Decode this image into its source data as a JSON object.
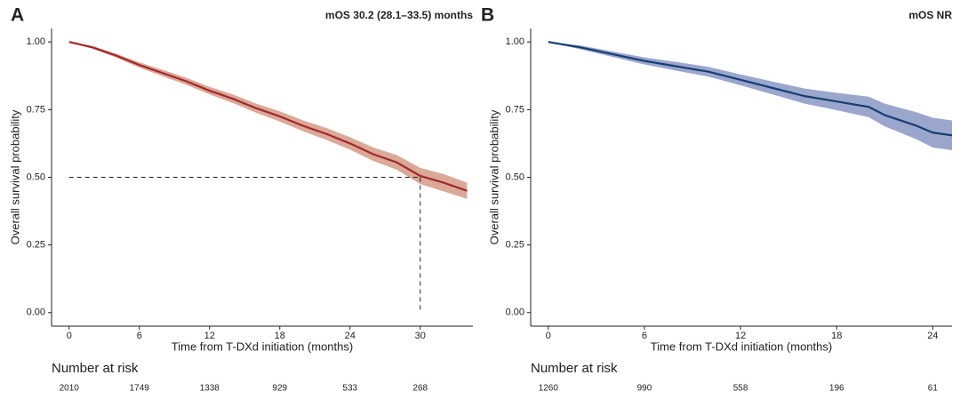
{
  "chart_data": [
    {
      "type": "line",
      "panel": "A",
      "title": "mOS 30.2 (28.1–33.5) months",
      "xlabel": "Time from T-DXd initiation (months)",
      "ylabel": "Overall survival probability",
      "xlim": [
        -1.5,
        34.5
      ],
      "ylim": [
        -0.05,
        1.05
      ],
      "xticks": [
        0,
        6,
        12,
        18,
        24,
        30
      ],
      "yticks": [
        {
          "value": 0,
          "label": "0.00"
        },
        {
          "value": 0.25,
          "label": "0.25"
        },
        {
          "value": 0.5,
          "label": "0.50"
        },
        {
          "value": 0.75,
          "label": "0.75"
        },
        {
          "value": 1,
          "label": "1.00"
        }
      ],
      "median": {
        "x": 30,
        "y": 0.5
      },
      "x": [
        0,
        2,
        4,
        6,
        8,
        10,
        12,
        14,
        16,
        18,
        20,
        22,
        24,
        26,
        28,
        30,
        32,
        34
      ],
      "series": [
        {
          "color": "#a3272a",
          "band_color": "#d49a86",
          "values": [
            1.0,
            0.98,
            0.95,
            0.915,
            0.885,
            0.855,
            0.82,
            0.79,
            0.755,
            0.725,
            0.69,
            0.66,
            0.625,
            0.585,
            0.555,
            0.505,
            0.48,
            0.45
          ],
          "lower": [
            1.0,
            0.975,
            0.943,
            0.905,
            0.873,
            0.842,
            0.806,
            0.774,
            0.738,
            0.706,
            0.67,
            0.638,
            0.602,
            0.56,
            0.528,
            0.475,
            0.448,
            0.42
          ],
          "upper": [
            1.0,
            0.985,
            0.957,
            0.925,
            0.897,
            0.868,
            0.834,
            0.806,
            0.772,
            0.744,
            0.71,
            0.682,
            0.648,
            0.61,
            0.582,
            0.535,
            0.512,
            0.48
          ]
        }
      ],
      "risk_table": {
        "title": "Number at risk",
        "times": [
          0,
          6,
          12,
          18,
          24,
          30
        ],
        "counts": [
          2010,
          1749,
          1338,
          929,
          533,
          268
        ]
      }
    },
    {
      "type": "line",
      "panel": "B",
      "title": "mOS NR",
      "xlabel": "Time from T-DXd initiation (months)",
      "ylabel": "Overall survival probability",
      "xlim": [
        -1.1,
        25.2
      ],
      "ylim": [
        -0.05,
        1.05
      ],
      "xticks": [
        0,
        6,
        12,
        18,
        24
      ],
      "yticks": [
        {
          "value": 0,
          "label": "0.00"
        },
        {
          "value": 0.25,
          "label": "0.25"
        },
        {
          "value": 0.5,
          "label": "0.50"
        },
        {
          "value": 0.75,
          "label": "0.75"
        },
        {
          "value": 1,
          "label": "1.00"
        }
      ],
      "x": [
        0,
        2,
        4,
        6,
        8,
        10,
        12,
        14,
        16,
        18,
        20,
        21,
        22,
        23,
        24,
        25.2
      ],
      "series": [
        {
          "color": "#163e72",
          "band_color": "#8996c4",
          "values": [
            1.0,
            0.98,
            0.955,
            0.93,
            0.91,
            0.89,
            0.86,
            0.83,
            0.8,
            0.78,
            0.76,
            0.73,
            0.71,
            0.69,
            0.665,
            0.655
          ],
          "lower": [
            1.0,
            0.973,
            0.945,
            0.917,
            0.894,
            0.872,
            0.84,
            0.806,
            0.772,
            0.748,
            0.722,
            0.688,
            0.664,
            0.64,
            0.61,
            0.6
          ],
          "upper": [
            1.0,
            0.987,
            0.965,
            0.943,
            0.926,
            0.908,
            0.88,
            0.854,
            0.828,
            0.812,
            0.798,
            0.772,
            0.756,
            0.74,
            0.72,
            0.71
          ]
        }
      ],
      "risk_table": {
        "title": "Number at risk",
        "times": [
          0,
          6,
          12,
          18,
          24
        ],
        "counts": [
          1260,
          990,
          558,
          196,
          61
        ]
      }
    }
  ]
}
